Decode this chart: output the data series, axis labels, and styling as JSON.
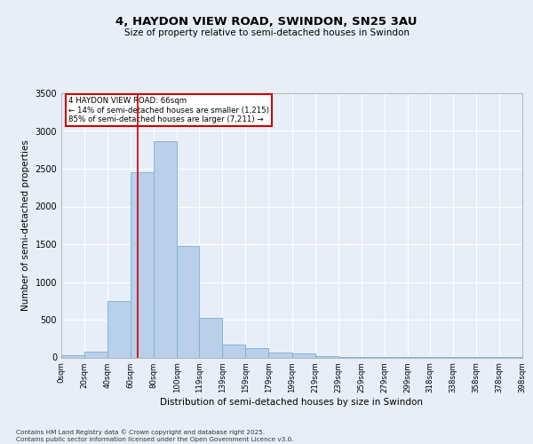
{
  "title_line1": "4, HAYDON VIEW ROAD, SWINDON, SN25 3AU",
  "title_line2": "Size of property relative to semi-detached houses in Swindon",
  "xlabel": "Distribution of semi-detached houses by size in Swindon",
  "ylabel": "Number of semi-detached properties",
  "bar_edges": [
    0,
    20,
    40,
    60,
    80,
    100,
    119,
    139,
    159,
    179,
    199,
    219,
    239,
    259,
    279,
    299,
    318,
    338,
    358,
    378,
    398
  ],
  "bar_heights": [
    25,
    75,
    750,
    2450,
    2870,
    1480,
    520,
    175,
    120,
    70,
    50,
    20,
    10,
    5,
    5,
    3,
    2,
    2,
    1,
    1
  ],
  "bar_color": "#b8d0ea",
  "bar_edge_color": "#7aafd4",
  "background_color": "#e8eef8",
  "grid_color": "#ffffff",
  "red_line_x": 66,
  "annotation_title": "4 HAYDON VIEW ROAD: 66sqm",
  "annotation_line1": "← 14% of semi-detached houses are smaller (1,215)",
  "annotation_line2": "85% of semi-detached houses are larger (7,211) →",
  "annotation_box_color": "#ffffff",
  "annotation_box_edge": "#cc0000",
  "ylim": [
    0,
    3500
  ],
  "yticks": [
    0,
    500,
    1000,
    1500,
    2000,
    2500,
    3000,
    3500
  ],
  "tick_labels": [
    "0sqm",
    "20sqm",
    "40sqm",
    "60sqm",
    "80sqm",
    "100sqm",
    "119sqm",
    "139sqm",
    "159sqm",
    "179sqm",
    "199sqm",
    "219sqm",
    "239sqm",
    "259sqm",
    "279sqm",
    "299sqm",
    "318sqm",
    "338sqm",
    "358sqm",
    "378sqm",
    "398sqm"
  ],
  "footnote": "Contains HM Land Registry data © Crown copyright and database right 2025.\nContains public sector information licensed under the Open Government Licence v3.0.",
  "red_line_color": "#cc0000"
}
